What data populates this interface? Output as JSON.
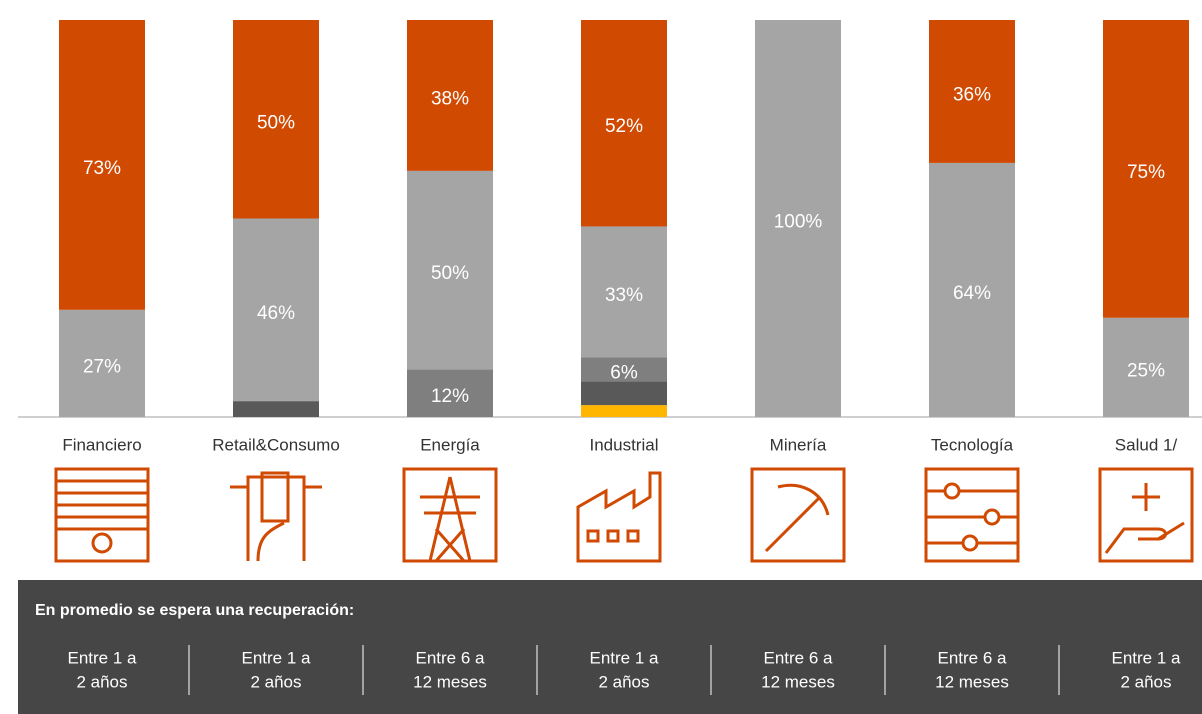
{
  "chart_data": {
    "type": "stacked_bar",
    "categories": [
      "Financiero",
      "Retail&Consumo",
      "Energía",
      "Industrial",
      "Minería",
      "Tecnología",
      "Salud 1/"
    ],
    "ylim": [
      0,
      100
    ],
    "series": [
      {
        "color": "#ffb600",
        "values": [
          null,
          null,
          null,
          3,
          null,
          null,
          null
        ],
        "value_labels": [
          null,
          null,
          null,
          null,
          null,
          null,
          null
        ]
      },
      {
        "color": "#595959",
        "values": [
          null,
          4,
          null,
          6,
          null,
          null,
          null
        ],
        "value_labels": [
          null,
          null,
          null,
          null,
          null,
          null,
          null
        ]
      },
      {
        "color": "#7f7f7f",
        "values": [
          null,
          null,
          12,
          6,
          null,
          null,
          null
        ],
        "value_labels": [
          null,
          null,
          "12%",
          "6%",
          null,
          null,
          null
        ]
      },
      {
        "color": "#a5a5a5",
        "values": [
          27,
          46,
          50,
          33,
          100,
          64,
          25
        ],
        "value_labels": [
          "27%",
          "46%",
          "50%",
          "33%",
          "100%",
          "64%",
          "25%"
        ]
      },
      {
        "color": "#d04a02",
        "values": [
          73,
          50,
          38,
          52,
          null,
          36,
          75
        ],
        "value_labels": [
          "73%",
          "50%",
          "38%",
          "52%",
          null,
          "36%",
          "75%"
        ]
      }
    ]
  },
  "recovery": {
    "title": "En promedio se espera una recuperación:",
    "items": [
      [
        "Entre 1 a",
        "2 años"
      ],
      [
        "Entre 1 a",
        "2 años"
      ],
      [
        "Entre 6 a",
        "12 meses"
      ],
      [
        "Entre 1 a",
        "2 años"
      ],
      [
        "Entre 6 a",
        "12 meses"
      ],
      [
        "Entre 6 a",
        "12 meses"
      ],
      [
        "Entre 1 a",
        "2 años"
      ]
    ]
  }
}
